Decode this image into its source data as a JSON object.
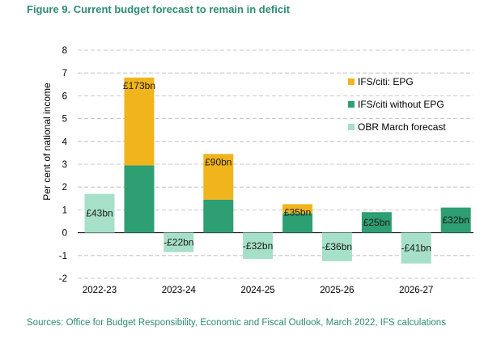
{
  "figure": {
    "title": "Figure 9. Current budget forecast to remain in deficit",
    "source": "Sources: Office for Budget Responsibility, Economic and Fiscal Outlook, March 2022, IFS calculations"
  },
  "colors": {
    "epg": "#f0b41c",
    "without_epg": "#2e9e73",
    "obr": "#a7e0c8"
  },
  "chart_data": {
    "type": "bar",
    "stacked": true,
    "ylabel": "Per cent of national income",
    "xlabel": "",
    "ylim": [
      -2,
      8
    ],
    "yticks": [
      -2,
      -1,
      0,
      1,
      2,
      3,
      4,
      5,
      6,
      7,
      8
    ],
    "grid": "horizontal dashed",
    "legend_position": "right",
    "categories": [
      "2022-23",
      "2023-24",
      "2024-25",
      "2025-26",
      "2026-27"
    ],
    "series": [
      {
        "name": "IFS/citi: EPG",
        "color_key": "epg",
        "values": [
          3.85,
          2.0,
          0.4,
          0,
          0
        ]
      },
      {
        "name": "IFS/citi without EPG",
        "color_key": "without_epg",
        "values": [
          2.95,
          1.45,
          0.85,
          0.9,
          1.1
        ]
      },
      {
        "name": "OBR March forecast",
        "color_key": "obr",
        "values": [
          1.7,
          -0.85,
          -1.15,
          -1.25,
          -1.35
        ]
      }
    ],
    "data_labels": {
      "ifs": [
        "£173bn",
        "£90bn",
        "£35bn",
        "£25bn",
        "£32bn"
      ],
      "obr": [
        "£43bn",
        "-£22bn",
        "-£32bn",
        "-£36bn",
        "-£41bn"
      ]
    }
  }
}
